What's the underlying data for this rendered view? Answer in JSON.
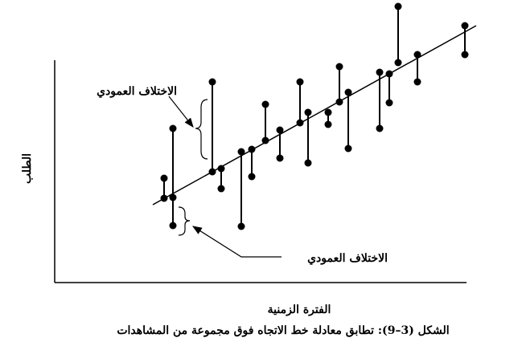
{
  "labels": {
    "deviation_top": "الاختلاف العمودي",
    "deviation_bottom": "الاختلاف العمودي",
    "y_axis": "الطلب",
    "x_axis": "الفترة الزمنية"
  },
  "caption": "الشكل (3–9): تطابق معادلة خط الاتجاه فوق مجموعة من المشاهدات"
}
